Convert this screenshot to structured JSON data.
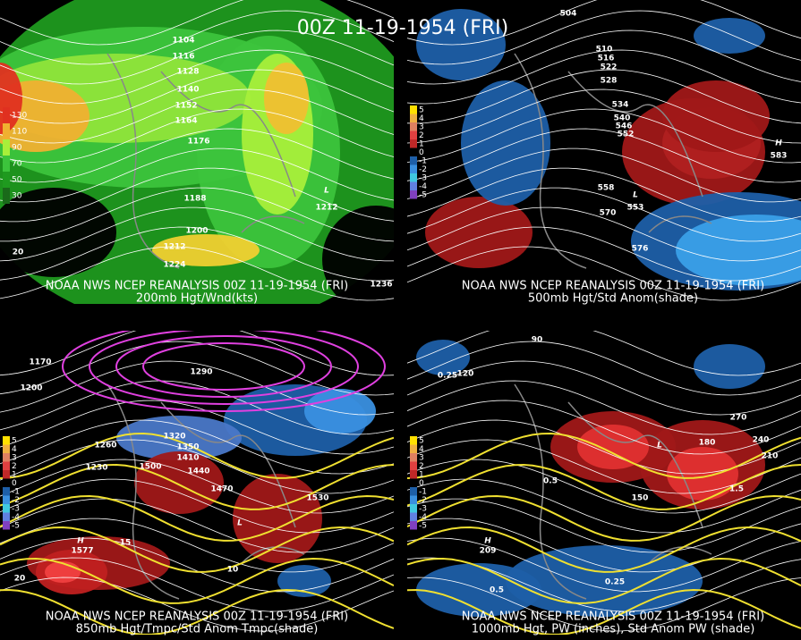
{
  "title": "00Z 11-19-1954 (FRI)",
  "panels": [
    {
      "caption": "NOAA NWS NCEP REANALYSIS 00Z 11-19-1954 (FRI)",
      "subcaption": "200mb Hgt/Wnd(kts)",
      "legend": [
        "130",
        "110",
        "90",
        "70",
        "50",
        "30"
      ],
      "labels": [
        "1104",
        "1116",
        "1128",
        "1140",
        "1152",
        "1164",
        "1176",
        "1188",
        "1200",
        "1212",
        "1224",
        "1236",
        "L",
        "1212",
        "20"
      ]
    },
    {
      "caption": "NOAA NWS NCEP REANALYSIS 00Z 11-19-1954 (FRI)",
      "subcaption": "500mb Hgt/Std Anom(shade)",
      "legend": [
        "5",
        "4",
        "3",
        "2",
        "1",
        "0",
        "-1",
        "-2",
        "-3",
        "-4",
        "-5"
      ],
      "labels": [
        "504",
        "510",
        "516",
        "522",
        "528",
        "534",
        "540",
        "546",
        "552",
        "558",
        "570",
        "576",
        "L",
        "553",
        "H",
        "583"
      ]
    },
    {
      "caption": "NOAA NWS NCEP REANALYSIS 00Z 11-19-1954 (FRI)",
      "subcaption": "850mb Hgt/Tmpc/Std Anom Tmpc(shade)",
      "legend": [
        "5",
        "4",
        "3",
        "2",
        "1",
        "0",
        "-1",
        "-2",
        "-3",
        "-4",
        "-5"
      ],
      "labels": [
        "1170",
        "1200",
        "1230",
        "1260",
        "1290",
        "1320",
        "1350",
        "1410",
        "1440",
        "1470",
        "1500",
        "1530",
        "H",
        "1577",
        "L",
        "15",
        "10",
        "20"
      ]
    },
    {
      "caption": "NOAA NWS NCEP REANALYSIS 00Z 11-19-1954 (FRI)",
      "subcaption": "1000mb Hgt, PW (inches), Std Anom PW (shade)",
      "legend": [
        "5",
        "4",
        "3",
        "2",
        "1",
        "0",
        "-1",
        "-2",
        "-3",
        "-4",
        "-5"
      ],
      "labels": [
        "90",
        "120",
        "150",
        "180",
        "210",
        "240",
        "270",
        "0.25",
        "0.5",
        "1.5",
        "H",
        "209",
        "L",
        "0.25",
        "0.5"
      ]
    }
  ]
}
